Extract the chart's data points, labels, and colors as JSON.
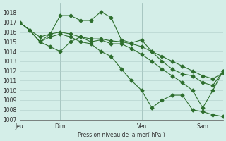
{
  "bg_color": "#d4eee8",
  "grid_color": "#b0ccc8",
  "line_color": "#2d6e2d",
  "marker_color": "#2d6e2d",
  "ylabel_text": "Pression niveau de la mer( hPa )",
  "xtick_labels": [
    "Jeu",
    "Dim",
    "Ven",
    "Sam"
  ],
  "xtick_positions": [
    0,
    4,
    12,
    18
  ],
  "ylim": [
    1007,
    1019
  ],
  "yticks": [
    1007,
    1008,
    1009,
    1010,
    1011,
    1012,
    1013,
    1014,
    1015,
    1016,
    1017,
    1018
  ],
  "series1": [
    1017.0,
    1016.2,
    1015.0,
    1015.8,
    1017.7,
    1017.7,
    1017.2,
    1017.2,
    1018.1,
    1017.5,
    1015.2,
    1014.9,
    1015.2,
    1014.0,
    1013.0,
    1012.2,
    1011.7,
    1011.5,
    1010.8,
    1010.5,
    1012.0
  ],
  "series2": [
    1017.0,
    1016.2,
    1015.5,
    1015.8,
    1016.0,
    1015.8,
    1015.5,
    1015.3,
    1015.3,
    1015.1,
    1015.0,
    1014.8,
    1014.5,
    1014.0,
    1013.5,
    1013.0,
    1012.5,
    1012.0,
    1011.5,
    1011.2,
    1011.8
  ],
  "series3": [
    1017.0,
    1016.2,
    1015.0,
    1015.5,
    1015.8,
    1015.5,
    1015.0,
    1014.8,
    1014.0,
    1013.5,
    1012.2,
    1011.0,
    1010.0,
    1008.2,
    1009.0,
    1009.5,
    1009.5,
    1008.0,
    1007.8,
    1007.5,
    1007.3
  ],
  "series4": [
    1017.0,
    1016.2,
    1015.0,
    1014.5,
    1014.0,
    1015.0,
    1015.5,
    1015.0,
    1015.2,
    1014.8,
    1014.8,
    1014.3,
    1013.7,
    1013.0,
    1012.2,
    1011.5,
    1010.8,
    1010.0,
    1008.2,
    1010.0,
    1012.0
  ]
}
